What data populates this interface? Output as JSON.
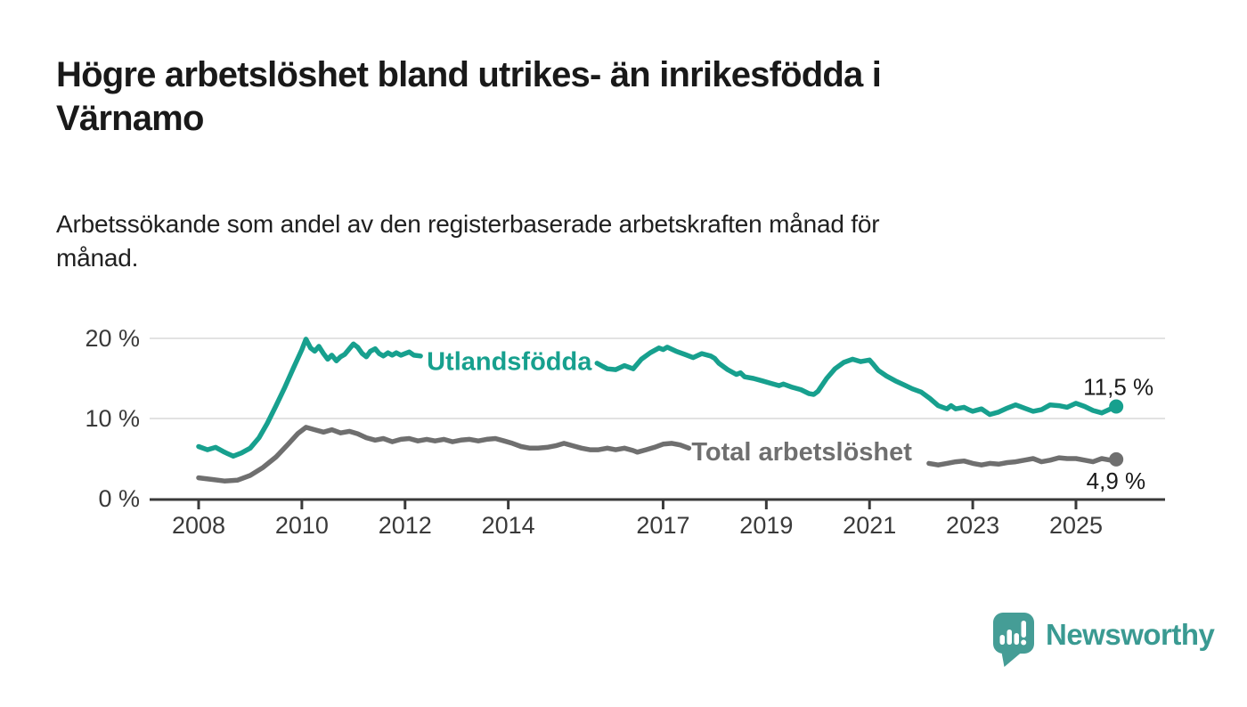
{
  "header": {
    "title_lines": [
      "Högre arbetslöshet bland utrikes- än inrikesfödda i",
      "Värnamo"
    ],
    "subtitle_lines": [
      "Arbetssökande som andel av den registerbaserade arbetskraften månad för",
      "månad."
    ]
  },
  "chart_data": {
    "type": "line",
    "title": "Högre arbetslöshet bland utrikes- än inrikesfödda i Värnamo",
    "subtitle": "Arbetssökande som andel av den registerbaserade arbetskraften månad för månad.",
    "xlabel": "",
    "ylabel": "",
    "x_unit": "year",
    "y_unit": "%",
    "ylim": [
      0,
      20
    ],
    "xlim": [
      2007.05,
      2026.7
    ],
    "grid": "horizontal",
    "grid_color": "#d9d9d9",
    "axis_color": "#3a3a3a",
    "y_ticks": [
      {
        "value": 0,
        "label": "0 %"
      },
      {
        "value": 10,
        "label": "10 %"
      },
      {
        "value": 20,
        "label": "20 %"
      }
    ],
    "x_ticks": [
      {
        "year": 2008,
        "label": "2008"
      },
      {
        "year": 2010,
        "label": "2010"
      },
      {
        "year": 2012,
        "label": "2012"
      },
      {
        "year": 2014,
        "label": "2014"
      },
      {
        "year": 2017,
        "label": "2017"
      },
      {
        "year": 2019,
        "label": "2019"
      },
      {
        "year": 2021,
        "label": "2021"
      },
      {
        "year": 2023,
        "label": "2023"
      },
      {
        "year": 2025,
        "label": "2025"
      }
    ],
    "series": [
      {
        "name": "Utlandsfödda",
        "color": "#17a08e",
        "label_pos": {
          "x": 2012.42,
          "y": 16.05
        },
        "end_label": "11,5 %",
        "end_value": 11.5,
        "end_label_side": "above",
        "points": [
          [
            2008.0,
            6.5
          ],
          [
            2008.17,
            6.1
          ],
          [
            2008.33,
            6.4
          ],
          [
            2008.5,
            5.8
          ],
          [
            2008.67,
            5.3
          ],
          [
            2008.83,
            5.7
          ],
          [
            2009.0,
            6.3
          ],
          [
            2009.17,
            7.6
          ],
          [
            2009.33,
            9.4
          ],
          [
            2009.5,
            11.6
          ],
          [
            2009.67,
            13.9
          ],
          [
            2009.83,
            16.2
          ],
          [
            2010.0,
            18.6
          ],
          [
            2010.08,
            19.9
          ],
          [
            2010.17,
            18.8
          ],
          [
            2010.25,
            18.4
          ],
          [
            2010.33,
            19.0
          ],
          [
            2010.42,
            18.1
          ],
          [
            2010.5,
            17.4
          ],
          [
            2010.58,
            17.9
          ],
          [
            2010.67,
            17.2
          ],
          [
            2010.75,
            17.7
          ],
          [
            2010.83,
            18.0
          ],
          [
            2010.92,
            18.7
          ],
          [
            2011.0,
            19.3
          ],
          [
            2011.08,
            18.9
          ],
          [
            2011.17,
            18.1
          ],
          [
            2011.25,
            17.7
          ],
          [
            2011.33,
            18.4
          ],
          [
            2011.42,
            18.7
          ],
          [
            2011.5,
            18.1
          ],
          [
            2011.58,
            17.8
          ],
          [
            2011.67,
            18.2
          ],
          [
            2011.75,
            17.9
          ],
          [
            2011.83,
            18.2
          ],
          [
            2011.92,
            17.9
          ],
          [
            2012.0,
            18.1
          ],
          [
            2012.08,
            18.3
          ],
          [
            2012.17,
            17.9
          ],
          [
            2012.3,
            17.8
          ],
          [
            2015.72,
            16.9
          ],
          [
            2015.83,
            16.5
          ],
          [
            2015.92,
            16.2
          ],
          [
            2016.08,
            16.1
          ],
          [
            2016.25,
            16.6
          ],
          [
            2016.42,
            16.2
          ],
          [
            2016.58,
            17.4
          ],
          [
            2016.75,
            18.2
          ],
          [
            2016.92,
            18.8
          ],
          [
            2017.0,
            18.6
          ],
          [
            2017.08,
            18.9
          ],
          [
            2017.25,
            18.4
          ],
          [
            2017.42,
            18.0
          ],
          [
            2017.58,
            17.6
          ],
          [
            2017.75,
            18.1
          ],
          [
            2017.92,
            17.8
          ],
          [
            2018.0,
            17.5
          ],
          [
            2018.08,
            16.9
          ],
          [
            2018.25,
            16.1
          ],
          [
            2018.42,
            15.5
          ],
          [
            2018.5,
            15.7
          ],
          [
            2018.58,
            15.2
          ],
          [
            2018.75,
            15.0
          ],
          [
            2018.92,
            14.7
          ],
          [
            2019.08,
            14.4
          ],
          [
            2019.25,
            14.1
          ],
          [
            2019.33,
            14.3
          ],
          [
            2019.5,
            13.9
          ],
          [
            2019.67,
            13.6
          ],
          [
            2019.83,
            13.1
          ],
          [
            2019.92,
            13.0
          ],
          [
            2020.0,
            13.4
          ],
          [
            2020.17,
            15.0
          ],
          [
            2020.33,
            16.2
          ],
          [
            2020.5,
            17.0
          ],
          [
            2020.67,
            17.4
          ],
          [
            2020.83,
            17.1
          ],
          [
            2021.0,
            17.3
          ],
          [
            2021.08,
            16.7
          ],
          [
            2021.17,
            16.0
          ],
          [
            2021.33,
            15.3
          ],
          [
            2021.5,
            14.7
          ],
          [
            2021.67,
            14.2
          ],
          [
            2021.83,
            13.7
          ],
          [
            2022.0,
            13.3
          ],
          [
            2022.17,
            12.5
          ],
          [
            2022.33,
            11.6
          ],
          [
            2022.5,
            11.2
          ],
          [
            2022.58,
            11.6
          ],
          [
            2022.67,
            11.2
          ],
          [
            2022.83,
            11.4
          ],
          [
            2022.92,
            11.1
          ],
          [
            2023.0,
            10.9
          ],
          [
            2023.17,
            11.2
          ],
          [
            2023.33,
            10.5
          ],
          [
            2023.5,
            10.8
          ],
          [
            2023.67,
            11.3
          ],
          [
            2023.83,
            11.7
          ],
          [
            2024.0,
            11.3
          ],
          [
            2024.17,
            10.9
          ],
          [
            2024.33,
            11.1
          ],
          [
            2024.5,
            11.7
          ],
          [
            2024.67,
            11.6
          ],
          [
            2024.83,
            11.4
          ],
          [
            2025.0,
            11.9
          ],
          [
            2025.17,
            11.5
          ],
          [
            2025.33,
            11.0
          ],
          [
            2025.5,
            10.7
          ],
          [
            2025.67,
            11.2
          ],
          [
            2025.78,
            11.5
          ]
        ]
      },
      {
        "name": "Total arbetslöshet",
        "color": "#6f6f6f",
        "label_pos": {
          "x": 2017.55,
          "y": 4.78
        },
        "end_label": "4,9 %",
        "end_value": 4.9,
        "end_label_side": "below",
        "points": [
          [
            2008.0,
            2.6
          ],
          [
            2008.25,
            2.4
          ],
          [
            2008.5,
            2.2
          ],
          [
            2008.75,
            2.3
          ],
          [
            2009.0,
            2.9
          ],
          [
            2009.25,
            3.9
          ],
          [
            2009.5,
            5.2
          ],
          [
            2009.75,
            6.9
          ],
          [
            2009.92,
            8.1
          ],
          [
            2010.08,
            8.9
          ],
          [
            2010.25,
            8.6
          ],
          [
            2010.42,
            8.3
          ],
          [
            2010.58,
            8.6
          ],
          [
            2010.75,
            8.2
          ],
          [
            2010.92,
            8.4
          ],
          [
            2011.08,
            8.1
          ],
          [
            2011.25,
            7.6
          ],
          [
            2011.42,
            7.3
          ],
          [
            2011.58,
            7.5
          ],
          [
            2011.75,
            7.1
          ],
          [
            2011.92,
            7.4
          ],
          [
            2012.08,
            7.5
          ],
          [
            2012.25,
            7.2
          ],
          [
            2012.42,
            7.4
          ],
          [
            2012.58,
            7.2
          ],
          [
            2012.75,
            7.4
          ],
          [
            2012.92,
            7.1
          ],
          [
            2013.08,
            7.3
          ],
          [
            2013.25,
            7.4
          ],
          [
            2013.42,
            7.2
          ],
          [
            2013.58,
            7.4
          ],
          [
            2013.75,
            7.5
          ],
          [
            2013.92,
            7.2
          ],
          [
            2014.08,
            6.9
          ],
          [
            2014.25,
            6.5
          ],
          [
            2014.42,
            6.3
          ],
          [
            2014.58,
            6.3
          ],
          [
            2014.75,
            6.4
          ],
          [
            2014.92,
            6.6
          ],
          [
            2015.08,
            6.9
          ],
          [
            2015.25,
            6.6
          ],
          [
            2015.42,
            6.3
          ],
          [
            2015.58,
            6.1
          ],
          [
            2015.75,
            6.1
          ],
          [
            2015.92,
            6.3
          ],
          [
            2016.08,
            6.1
          ],
          [
            2016.25,
            6.3
          ],
          [
            2016.42,
            6.0
          ],
          [
            2016.5,
            5.8
          ],
          [
            2016.67,
            6.1
          ],
          [
            2016.83,
            6.4
          ],
          [
            2017.0,
            6.8
          ],
          [
            2017.17,
            6.9
          ],
          [
            2017.33,
            6.7
          ],
          [
            2017.5,
            6.3
          ],
          [
            2022.15,
            4.4
          ],
          [
            2022.33,
            4.2
          ],
          [
            2022.5,
            4.4
          ],
          [
            2022.67,
            4.6
          ],
          [
            2022.83,
            4.7
          ],
          [
            2023.0,
            4.4
          ],
          [
            2023.17,
            4.2
          ],
          [
            2023.33,
            4.4
          ],
          [
            2023.5,
            4.3
          ],
          [
            2023.67,
            4.5
          ],
          [
            2023.83,
            4.6
          ],
          [
            2024.0,
            4.8
          ],
          [
            2024.17,
            5.0
          ],
          [
            2024.33,
            4.6
          ],
          [
            2024.5,
            4.8
          ],
          [
            2024.67,
            5.1
          ],
          [
            2024.83,
            5.0
          ],
          [
            2025.0,
            5.0
          ],
          [
            2025.17,
            4.8
          ],
          [
            2025.33,
            4.6
          ],
          [
            2025.5,
            5.0
          ],
          [
            2025.67,
            4.8
          ],
          [
            2025.78,
            4.9
          ]
        ]
      }
    ]
  },
  "footer": {
    "brand_label": "Newsworthy",
    "brand_color": "#3a9a92",
    "icon": "newsworthy-speech-bubble-chart-icon",
    "icon_color": "#459d96"
  }
}
